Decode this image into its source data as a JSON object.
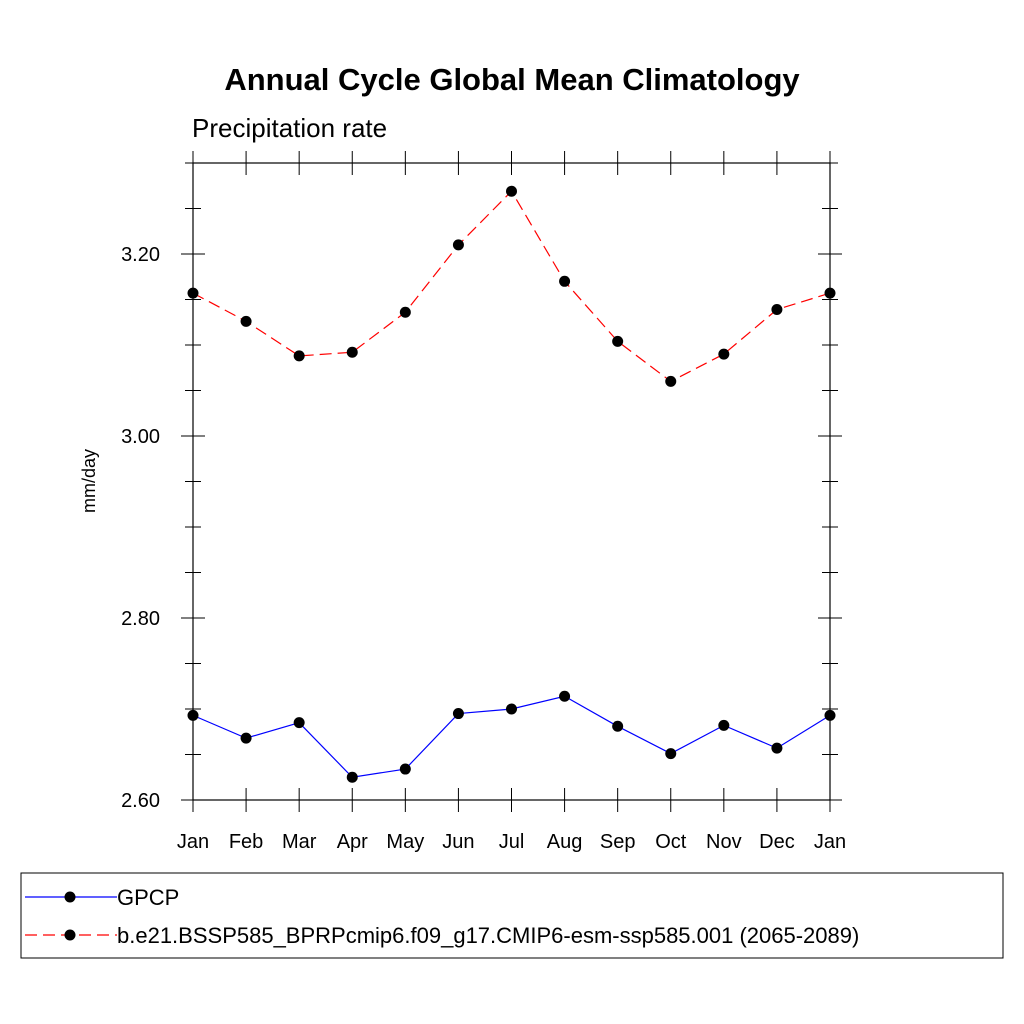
{
  "chart_data": {
    "type": "line",
    "title": "Annual Cycle Global Mean Climatology",
    "subtitle": "Precipitation rate",
    "xlabel": "",
    "ylabel": "mm/day",
    "categories": [
      "Jan",
      "Feb",
      "Mar",
      "Apr",
      "May",
      "Jun",
      "Jul",
      "Aug",
      "Sep",
      "Oct",
      "Nov",
      "Dec",
      "Jan"
    ],
    "ylim": [
      2.6,
      3.3
    ],
    "yticks": [
      "2.60",
      "2.80",
      "3.00",
      "3.20"
    ],
    "ytick_values": [
      2.6,
      2.8,
      3.0,
      3.2
    ],
    "series": [
      {
        "name": "GPCP",
        "color": "#0000ff",
        "line_style": "solid",
        "marker": "filled-circle",
        "values": [
          2.693,
          2.668,
          2.685,
          2.625,
          2.634,
          2.695,
          2.7,
          2.714,
          2.681,
          2.651,
          2.682,
          2.657,
          2.693
        ]
      },
      {
        "name": "b.e21.BSSP585_BPRPcmip6.f09_g17.CMIP6-esm-ssp585.001 (2065-2089)",
        "color": "#ff0000",
        "line_style": "dashed",
        "marker": "filled-circle",
        "values": [
          3.157,
          3.126,
          3.088,
          3.092,
          3.136,
          3.21,
          3.269,
          3.17,
          3.104,
          3.06,
          3.09,
          3.139,
          3.157
        ]
      }
    ],
    "grid": false,
    "legend_position": "bottom"
  }
}
